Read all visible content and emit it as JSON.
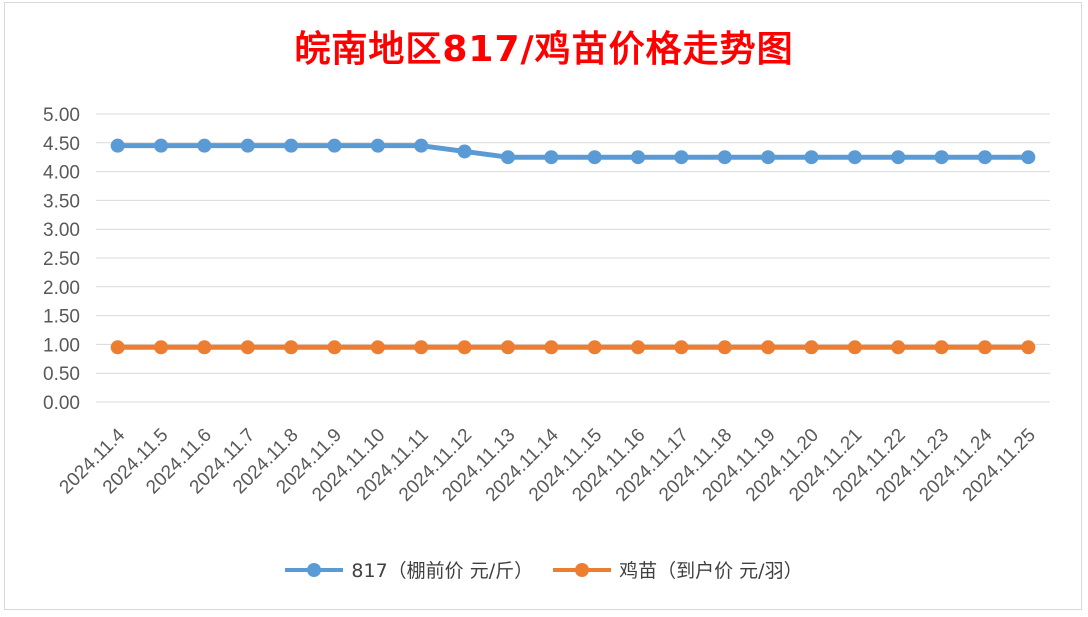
{
  "chart_data": {
    "type": "line",
    "title": "皖南地区817/鸡苗价格走势图",
    "title_color": "#ff0000",
    "categories": [
      "2024.11.4",
      "2024.11.5",
      "2024.11.6",
      "2024.11.7",
      "2024.11.8",
      "2024.11.9",
      "2024.11.10",
      "2024.11.11",
      "2024.11.12",
      "2024.11.13",
      "2024.11.14",
      "2024.11.15",
      "2024.11.16",
      "2024.11.17",
      "2024.11.18",
      "2024.11.19",
      "2024.11.20",
      "2024.11.21",
      "2024.11.22",
      "2024.11.23",
      "2024.11.24",
      "2024.11.25"
    ],
    "series": [
      {
        "name": "817（棚前价 元/斤）",
        "color": "#5b9bd5",
        "values": [
          4.45,
          4.45,
          4.45,
          4.45,
          4.45,
          4.45,
          4.45,
          4.45,
          4.35,
          4.25,
          4.25,
          4.25,
          4.25,
          4.25,
          4.25,
          4.25,
          4.25,
          4.25,
          4.25,
          4.25,
          4.25,
          4.25
        ]
      },
      {
        "name": "鸡苗（到户价 元/羽）",
        "color": "#ed7d31",
        "values": [
          0.95,
          0.95,
          0.95,
          0.95,
          0.95,
          0.95,
          0.95,
          0.95,
          0.95,
          0.95,
          0.95,
          0.95,
          0.95,
          0.95,
          0.95,
          0.95,
          0.95,
          0.95,
          0.95,
          0.95,
          0.95,
          0.95
        ]
      }
    ],
    "ylim": [
      0,
      5
    ],
    "yticks": [
      "0.00",
      "0.50",
      "1.00",
      "1.50",
      "2.00",
      "2.50",
      "3.00",
      "3.50",
      "4.00",
      "4.50",
      "5.00"
    ],
    "grid": true,
    "legend_position": "bottom"
  }
}
